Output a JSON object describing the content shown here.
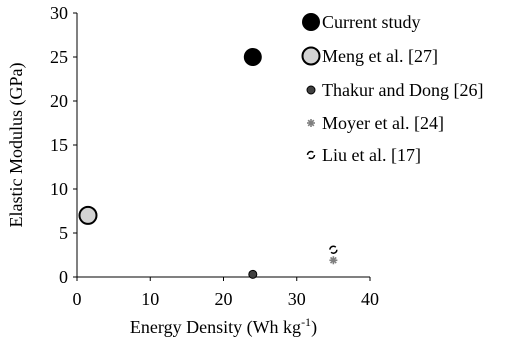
{
  "chart_data": {
    "type": "scatter",
    "xlabel": "Energy Density (Wh kg",
    "xlabel_superscript": "-1",
    "xlabel_suffix": ")",
    "ylabel": "Elastic Modulus (GPa)",
    "xlim": [
      0,
      40
    ],
    "ylim": [
      0,
      30
    ],
    "x_ticks": [
      "0",
      "10",
      "20",
      "30",
      "40"
    ],
    "y_ticks": [
      "0",
      "5",
      "10",
      "15",
      "20",
      "25",
      "30"
    ],
    "grid": false,
    "legend_position": "top-right",
    "series": [
      {
        "name": "Current study",
        "marker": "large-filled-circle",
        "color": "#000000",
        "points": [
          {
            "x": 24,
            "y": 25
          }
        ]
      },
      {
        "name": "Meng et al. [27]",
        "marker": "large-circle-gray-fill",
        "color": "#d3d3d3",
        "points": [
          {
            "x": 1.5,
            "y": 7
          }
        ]
      },
      {
        "name": "Thakur and Dong [26]",
        "marker": "small-dark-circle",
        "color": "#404040",
        "points": [
          {
            "x": 24,
            "y": 0.3
          }
        ]
      },
      {
        "name": "Moyer et al. [24]",
        "marker": "small-gray-star",
        "color": "#7f7f7f",
        "points": [
          {
            "x": 35,
            "y": 1.9
          }
        ]
      },
      {
        "name": "Liu et al. [17]",
        "marker": "small-open-circle-dashed",
        "color": "#000000",
        "points": [
          {
            "x": 35,
            "y": 3.1
          }
        ]
      }
    ]
  }
}
